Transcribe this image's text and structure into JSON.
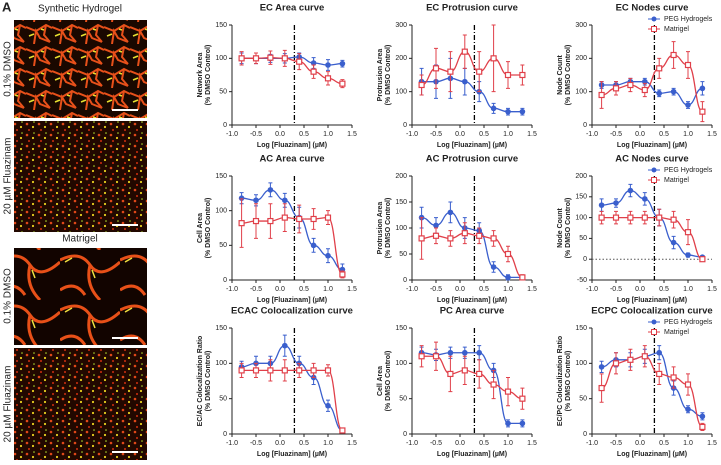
{
  "panel_label": "A",
  "images": {
    "group1": "Synthetic Hydrogel",
    "group1_top": "0.1% DMSO",
    "group1_bottom": "20 µM Fluazinam",
    "group2": "Matrigel",
    "group2_top": "0.1% DMSO",
    "group2_bottom": "20 µM Fluazinam"
  },
  "chart_data": [
    {
      "type": "line",
      "title": "EC Area curve",
      "ylabel": [
        "Network Area",
        "(% DMSO Control)"
      ],
      "xlabel": "Log [Fluazinam] (µM)",
      "x": [
        -0.8,
        -0.5,
        -0.2,
        0.1,
        0.4,
        0.7,
        1.0,
        1.3
      ],
      "vline": 0.3,
      "xlim": [
        -1,
        1.5
      ],
      "xticks": [
        {
          "value": -1,
          "label": "-1.0"
        },
        -0.5,
        {
          "value": 0,
          "label": "0.0"
        },
        0.5,
        {
          "value": 1,
          "label": "1.0"
        },
        1.5
      ],
      "ylim": [
        0,
        150
      ],
      "yticks": [
        0,
        50,
        100,
        150
      ],
      "series": [
        {
          "color": "#3a5fcd",
          "marker": "circle",
          "values": [
            100,
            100,
            100,
            100,
            102,
            93,
            90,
            92
          ],
          "errors": [
            8,
            8,
            6,
            7,
            6,
            8,
            8,
            5
          ]
        },
        {
          "color": "#e0404a",
          "marker": "square",
          "values": [
            100,
            100,
            101,
            100,
            95,
            80,
            70,
            62
          ],
          "errors": [
            10,
            8,
            10,
            12,
            12,
            10,
            10,
            6
          ]
        }
      ]
    },
    {
      "type": "line",
      "title": "EC Protrusion curve",
      "ylabel": [
        "Protrusion Area",
        "(% DMSO Control)"
      ],
      "xlabel": "Log [Fluazinam] (µM)",
      "x": [
        -0.8,
        -0.5,
        -0.2,
        0.1,
        0.4,
        0.7,
        1.0,
        1.3
      ],
      "vline": 0.3,
      "xlim": [
        -1,
        1.5
      ],
      "xticks": [
        {
          "value": -1,
          "label": "-1.0"
        },
        -0.5,
        {
          "value": 0,
          "label": "0.0"
        },
        0.5,
        {
          "value": 1,
          "label": "1.0"
        },
        1.5
      ],
      "ylim": [
        0,
        300
      ],
      "yticks": [
        0,
        100,
        200,
        300
      ],
      "series": [
        {
          "color": "#3a5fcd",
          "marker": "circle",
          "values": [
            130,
            130,
            140,
            130,
            100,
            50,
            40,
            40
          ],
          "errors": [
            40,
            50,
            60,
            40,
            30,
            15,
            10,
            10
          ]
        },
        {
          "color": "#e0404a",
          "marker": "square",
          "values": [
            120,
            170,
            160,
            220,
            160,
            200,
            150,
            150
          ],
          "errors": [
            30,
            60,
            60,
            50,
            60,
            100,
            40,
            30
          ]
        }
      ]
    },
    {
      "type": "line",
      "title": "EC Nodes curve",
      "ylabel": [
        "Node Count",
        "(% DMSO Control)"
      ],
      "xlabel": "Log [Fluazinam] (µM)",
      "x": [
        -0.8,
        -0.5,
        -0.2,
        0.1,
        0.4,
        0.7,
        1.0,
        1.3
      ],
      "vline": 0.3,
      "xlim": [
        -1,
        1.5
      ],
      "xticks": [
        {
          "value": -1,
          "label": "-1.0"
        },
        -0.5,
        {
          "value": 0,
          "label": "0.0"
        },
        0.5,
        {
          "value": 1,
          "label": "1.0"
        },
        1.5
      ],
      "ylim": [
        0,
        300
      ],
      "yticks": [
        0,
        100,
        200,
        300
      ],
      "series": [
        {
          "name": "PEG Hydrogels",
          "color": "#3a5fcd",
          "marker": "circle",
          "values": [
            120,
            120,
            130,
            130,
            95,
            100,
            60,
            110
          ],
          "errors": [
            10,
            10,
            10,
            10,
            10,
            10,
            10,
            20
          ]
        },
        {
          "name": "Matrigel",
          "color": "#e0404a",
          "marker": "square",
          "values": [
            90,
            110,
            120,
            105,
            170,
            210,
            180,
            40
          ],
          "errors": [
            40,
            20,
            20,
            20,
            30,
            40,
            40,
            30
          ]
        }
      ]
    },
    {
      "type": "line",
      "title": "AC Area curve",
      "ylabel": [
        "Cell Area",
        "(% DMSO Control)"
      ],
      "xlabel": "Log [Fluazinam] (µM)",
      "x": [
        -0.8,
        -0.5,
        -0.2,
        0.1,
        0.4,
        0.7,
        1.0,
        1.3
      ],
      "vline": 0.3,
      "xlim": [
        -1,
        1.5
      ],
      "xticks": [
        {
          "value": -1,
          "label": "-1.0"
        },
        -0.5,
        {
          "value": 0,
          "label": "0.0"
        },
        0.5,
        {
          "value": 1,
          "label": "1.0"
        },
        1.5
      ],
      "ylim": [
        0,
        150
      ],
      "yticks": [
        0,
        50,
        100,
        150
      ],
      "series": [
        {
          "color": "#3a5fcd",
          "marker": "circle",
          "values": [
            118,
            115,
            130,
            115,
            90,
            50,
            35,
            15
          ],
          "errors": [
            8,
            8,
            10,
            10,
            15,
            10,
            10,
            8
          ]
        },
        {
          "color": "#e0404a",
          "marker": "square",
          "values": [
            82,
            85,
            85,
            90,
            88,
            88,
            90,
            8
          ],
          "errors": [
            35,
            25,
            25,
            20,
            20,
            15,
            10,
            5
          ]
        }
      ]
    },
    {
      "type": "line",
      "title": "AC Protrusion curve",
      "ylabel": [
        "Protrusion Area",
        "(% DMSO Control)"
      ],
      "xlabel": "Log [Fluazinam] (µM)",
      "x": [
        -0.8,
        -0.5,
        -0.2,
        0.1,
        0.4,
        0.7,
        1.0,
        1.3
      ],
      "vline": 0.3,
      "xlim": [
        -1,
        1.5
      ],
      "xticks": [
        {
          "value": -1,
          "label": "-1.0"
        },
        -0.5,
        {
          "value": 0,
          "label": "0.0"
        },
        0.5,
        {
          "value": 1,
          "label": "1.0"
        },
        1.5
      ],
      "ylim": [
        0,
        200
      ],
      "yticks": [
        0,
        50,
        100,
        150,
        200
      ],
      "series": [
        {
          "color": "#3a5fcd",
          "marker": "circle",
          "values": [
            120,
            105,
            130,
            100,
            95,
            25,
            5,
            5
          ],
          "errors": [
            20,
            15,
            20,
            20,
            15,
            10,
            5,
            3
          ]
        },
        {
          "color": "#e0404a",
          "marker": "square",
          "values": [
            80,
            85,
            80,
            90,
            85,
            80,
            50,
            5
          ],
          "errors": [
            40,
            15,
            15,
            20,
            15,
            15,
            15,
            5
          ]
        }
      ]
    },
    {
      "type": "line",
      "title": "AC Nodes curve",
      "ylabel": [
        "Node Count",
        "(% DMSO Control)"
      ],
      "xlabel": "Log [Fluazinam] (µM)",
      "x": [
        -0.8,
        -0.5,
        -0.2,
        0.1,
        0.4,
        0.7,
        1.0,
        1.3
      ],
      "vline": 0.3,
      "hline": 0,
      "xlim": [
        -1,
        1.5
      ],
      "xticks": [
        {
          "value": -1,
          "label": "-1.0"
        },
        -0.5,
        {
          "value": 0,
          "label": "0.0"
        },
        0.5,
        {
          "value": 1,
          "label": "1.0"
        },
        1.5
      ],
      "ylim": [
        -50,
        200
      ],
      "yticks": [
        -50,
        0,
        50,
        100,
        150,
        200
      ],
      "series": [
        {
          "name": "PEG Hydrogels",
          "color": "#3a5fcd",
          "marker": "circle",
          "values": [
            130,
            135,
            165,
            145,
            100,
            40,
            10,
            5
          ],
          "errors": [
            15,
            10,
            15,
            15,
            20,
            15,
            5,
            3
          ]
        },
        {
          "name": "Matrigel",
          "color": "#e0404a",
          "marker": "square",
          "values": [
            100,
            100,
            100,
            100,
            100,
            95,
            65,
            0
          ],
          "errors": [
            15,
            15,
            15,
            15,
            20,
            20,
            30,
            5
          ]
        }
      ]
    },
    {
      "type": "line",
      "title": "ECAC Colocalization curve",
      "ylabel": [
        "EC/AC Colocalization Ratio",
        "(% DMSO Control)"
      ],
      "xlabel": "Log [Fluazinam] (µM)",
      "x": [
        -0.8,
        -0.5,
        -0.2,
        0.1,
        0.4,
        0.7,
        1.0,
        1.3
      ],
      "vline": 0.3,
      "xlim": [
        -1,
        1.5
      ],
      "xticks": [
        {
          "value": -1,
          "label": "-1.0"
        },
        -0.5,
        {
          "value": 0,
          "label": "0.0"
        },
        0.5,
        {
          "value": 1,
          "label": "1.0"
        },
        1.5
      ],
      "ylim": [
        0,
        150
      ],
      "yticks": [
        0,
        50,
        100,
        150
      ],
      "series": [
        {
          "color": "#3a5fcd",
          "marker": "circle",
          "values": [
            95,
            100,
            100,
            125,
            100,
            80,
            40,
            5
          ],
          "errors": [
            8,
            10,
            10,
            15,
            10,
            10,
            8,
            3
          ]
        },
        {
          "color": "#e0404a",
          "marker": "square",
          "values": [
            90,
            90,
            90,
            90,
            90,
            90,
            90,
            5
          ],
          "errors": [
            10,
            10,
            15,
            15,
            10,
            10,
            8,
            3
          ]
        }
      ]
    },
    {
      "type": "line",
      "title": "PC Area curve",
      "ylabel": [
        "Cell Area",
        "(% DMSO Control)"
      ],
      "xlabel": "Log [Fluazinam] (µM)",
      "x": [
        -0.8,
        -0.5,
        -0.2,
        0.1,
        0.4,
        0.7,
        1.0,
        1.3
      ],
      "vline": 0.3,
      "xlim": [
        -1,
        1.5
      ],
      "xticks": [
        {
          "value": -1,
          "label": "-1.0"
        },
        -0.5,
        {
          "value": 0,
          "label": "0.0"
        },
        0.5,
        {
          "value": 1,
          "label": "1.0"
        },
        1.5
      ],
      "ylim": [
        0,
        150
      ],
      "yticks": [
        0,
        50,
        100,
        150
      ],
      "series": [
        {
          "color": "#3a5fcd",
          "marker": "circle",
          "values": [
            115,
            112,
            115,
            115,
            115,
            90,
            15,
            15
          ],
          "errors": [
            8,
            8,
            8,
            8,
            10,
            10,
            5,
            5
          ]
        },
        {
          "color": "#e0404a",
          "marker": "square",
          "values": [
            110,
            110,
            85,
            90,
            85,
            70,
            60,
            50
          ],
          "errors": [
            15,
            20,
            25,
            20,
            20,
            20,
            20,
            15
          ]
        }
      ]
    },
    {
      "type": "line",
      "title": "ECPC Colocalization curve",
      "ylabel": [
        "EC/PC Colocalization Ratio",
        "(% DMSO Control)"
      ],
      "xlabel": "Log [Fluazinam] (µM)",
      "x": [
        -0.8,
        -0.5,
        -0.2,
        0.1,
        0.4,
        0.7,
        1.0,
        1.3
      ],
      "vline": 0.3,
      "xlim": [
        -1,
        1.5
      ],
      "xticks": [
        {
          "value": -1,
          "label": "-1.0"
        },
        -0.5,
        {
          "value": 0,
          "label": "0.0"
        },
        0.5,
        {
          "value": 1,
          "label": "1.0"
        },
        1.5
      ],
      "ylim": [
        0,
        150
      ],
      "yticks": [
        0,
        50,
        100,
        150
      ],
      "series": [
        {
          "name": "PEG Hydrogels",
          "color": "#3a5fcd",
          "marker": "circle",
          "values": [
            95,
            105,
            105,
            110,
            115,
            65,
            35,
            25
          ],
          "errors": [
            8,
            10,
            10,
            10,
            10,
            10,
            5,
            5
          ]
        },
        {
          "name": "Matrigel",
          "color": "#e0404a",
          "marker": "square",
          "values": [
            65,
            100,
            105,
            110,
            85,
            80,
            70,
            10
          ],
          "errors": [
            20,
            15,
            15,
            15,
            15,
            15,
            15,
            5
          ]
        }
      ]
    }
  ]
}
